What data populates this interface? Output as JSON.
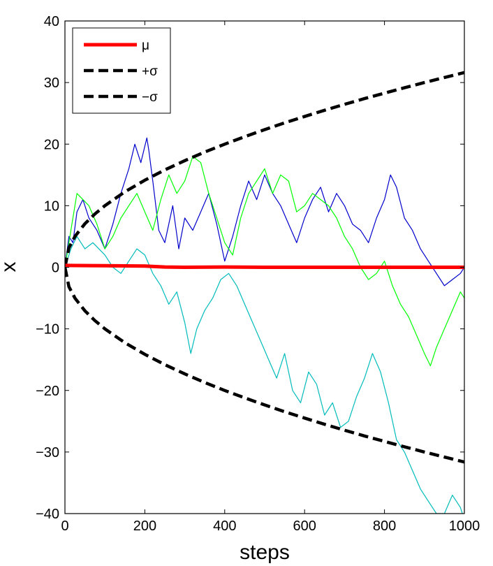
{
  "chart_data": {
    "type": "line",
    "title": "",
    "xlabel": "steps",
    "ylabel": "x",
    "xlim": [
      0,
      1000
    ],
    "ylim": [
      -40,
      40
    ],
    "xticks": [
      "0",
      "200",
      "400",
      "600",
      "800",
      "1000"
    ],
    "yticks": [
      "40",
      "30",
      "20",
      "10",
      "0",
      "−10",
      "−20",
      "−30",
      "−40"
    ],
    "grid": false,
    "legend_position": "top-left",
    "legend": [
      {
        "label": "μ",
        "color": "#ff0000",
        "style": "solid"
      },
      {
        "label": "+σ",
        "color": "#000000",
        "style": "dashed"
      },
      {
        "label": "−σ",
        "color": "#000000",
        "style": "dashed"
      }
    ],
    "series": [
      {
        "name": "μ",
        "color": "#ff0000",
        "style": "solid",
        "x": [
          0,
          100,
          200,
          250,
          300,
          400,
          500,
          600,
          700,
          800,
          900,
          1000
        ],
        "y": [
          0.3,
          0.25,
          0.2,
          0.05,
          0.0,
          0.05,
          0.0,
          0.0,
          0.0,
          0.0,
          0.0,
          0.0
        ]
      },
      {
        "name": "+σ",
        "color": "#000000",
        "style": "dashed",
        "x": [
          0,
          10,
          25,
          50,
          75,
          100,
          150,
          200,
          250,
          300,
          350,
          400,
          450,
          500,
          550,
          600,
          650,
          700,
          750,
          800,
          850,
          900,
          950,
          1000
        ],
        "y": [
          0,
          3.16,
          5,
          7.07,
          8.66,
          10,
          12.25,
          14.14,
          15.81,
          17.32,
          18.71,
          20,
          21.21,
          22.36,
          23.45,
          24.49,
          25.5,
          26.46,
          27.39,
          28.28,
          29.15,
          30,
          30.82,
          31.62
        ]
      },
      {
        "name": "−σ",
        "color": "#000000",
        "style": "dashed",
        "x": [
          0,
          10,
          25,
          50,
          75,
          100,
          150,
          200,
          250,
          300,
          350,
          400,
          450,
          500,
          550,
          600,
          650,
          700,
          750,
          800,
          850,
          900,
          950,
          1000
        ],
        "y": [
          0,
          -3.16,
          -5,
          -7.07,
          -8.66,
          -10,
          -12.25,
          -14.14,
          -15.81,
          -17.32,
          -18.71,
          -20,
          -21.21,
          -22.36,
          -23.45,
          -24.49,
          -25.5,
          -26.46,
          -27.39,
          -28.28,
          -29.15,
          -30,
          -30.82,
          -31.62
        ]
      },
      {
        "color": "#0000cc",
        "style": "solid",
        "x": [
          0,
          10,
          20,
          30,
          45,
          60,
          80,
          100,
          120,
          140,
          160,
          175,
          190,
          205,
          210,
          220,
          235,
          250,
          270,
          285,
          300,
          320,
          340,
          360,
          380,
          400,
          420,
          440,
          460,
          480,
          500,
          520,
          540,
          560,
          580,
          600,
          620,
          640,
          660,
          680,
          700,
          720,
          740,
          760,
          780,
          800,
          815,
          830,
          850,
          870,
          890,
          910,
          930,
          950,
          970,
          990,
          1000
        ],
        "y": [
          0,
          5,
          4,
          9,
          11,
          8,
          6,
          3,
          7,
          12,
          16,
          20,
          17,
          21,
          19,
          14,
          6,
          4,
          10,
          3,
          8,
          6,
          9,
          12,
          7,
          1,
          5,
          10,
          14,
          11,
          15,
          12,
          10,
          7,
          4,
          8,
          11,
          13,
          9,
          12,
          10,
          7,
          6,
          4,
          8,
          11,
          15,
          13,
          8,
          6,
          3,
          1,
          -1,
          -3,
          -2,
          -1,
          0
        ]
      },
      {
        "color": "#00ff00",
        "style": "solid",
        "x": [
          0,
          10,
          20,
          30,
          45,
          60,
          80,
          100,
          120,
          140,
          160,
          180,
          200,
          220,
          240,
          260,
          280,
          300,
          320,
          340,
          360,
          380,
          400,
          420,
          440,
          460,
          480,
          500,
          520,
          540,
          560,
          580,
          600,
          620,
          640,
          660,
          680,
          700,
          720,
          740,
          760,
          780,
          800,
          820,
          840,
          860,
          880,
          900,
          915,
          930,
          950,
          970,
          990,
          1000
        ],
        "y": [
          0,
          4,
          8,
          12,
          11,
          10,
          7,
          3,
          5,
          8,
          10,
          12,
          9,
          6,
          11,
          15,
          12,
          14,
          18,
          17,
          12,
          8,
          4,
          2,
          8,
          12,
          14,
          16,
          12,
          15,
          14,
          9,
          10,
          12,
          11,
          10,
          8,
          5,
          3,
          0,
          -2,
          -1,
          1,
          -3,
          -6,
          -8,
          -11,
          -14,
          -16,
          -13,
          -10,
          -7,
          -4,
          -5
        ]
      },
      {
        "color": "#00bbbb",
        "style": "solid",
        "x": [
          0,
          15,
          30,
          50,
          70,
          100,
          120,
          140,
          160,
          180,
          200,
          220,
          240,
          260,
          280,
          300,
          315,
          330,
          350,
          370,
          390,
          410,
          430,
          450,
          470,
          490,
          510,
          530,
          550,
          570,
          590,
          610,
          630,
          650,
          670,
          690,
          710,
          730,
          750,
          770,
          790,
          810,
          830,
          850,
          870,
          890,
          910,
          930,
          950,
          970,
          990,
          1000
        ],
        "y": [
          0,
          3,
          5,
          3,
          4,
          2,
          0,
          -1,
          1,
          3,
          2,
          -1,
          -3,
          -6,
          -4,
          -9,
          -14,
          -10,
          -7,
          -5,
          -2,
          -1,
          -3,
          -6,
          -9,
          -12,
          -15,
          -18,
          -14,
          -20,
          -22,
          -17,
          -19,
          -24,
          -22,
          -26,
          -25,
          -21,
          -18,
          -14,
          -17,
          -22,
          -28,
          -30,
          -33,
          -36,
          -38,
          -40,
          -40,
          -37,
          -39,
          -41
        ]
      }
    ]
  }
}
